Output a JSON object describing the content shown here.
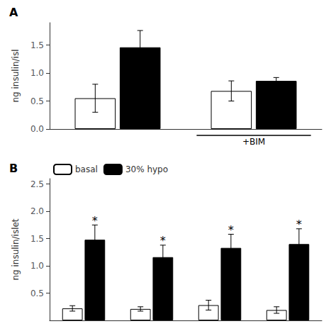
{
  "chart_data": [
    {
      "type": "bar",
      "title": "A",
      "ylabel": "ng insulin/isl",
      "categories": [
        null,
        null
      ],
      "series": [
        {
          "color": "#ffffff",
          "values": [
            0.55,
            0.68
          ],
          "errors": [
            0.25,
            0.18
          ]
        },
        {
          "color": "#000000",
          "values": [
            1.46,
            0.86
          ],
          "errors": [
            0.3,
            0.06
          ]
        }
      ],
      "ylim": [
        0,
        1.9
      ],
      "yticks": [
        {
          "value": 0,
          "label": "0.0"
        },
        0.5,
        {
          "value": 1,
          "label": "1.0"
        },
        1.5
      ],
      "annotations": [
        {
          "text": "+BIM",
          "category": 1
        }
      ],
      "grid": false,
      "tick_labels": "y"
    },
    {
      "type": "bar",
      "title": "B",
      "ylabel": "ng insulin/islet",
      "categories": [
        null,
        null,
        null,
        null
      ],
      "series": [
        {
          "name": "basal",
          "color": "#ffffff",
          "values": [
            0.22,
            0.21,
            0.28,
            0.19
          ],
          "errors": [
            0.05,
            0.04,
            0.09,
            0.06
          ]
        },
        {
          "name": "30% hypo",
          "color": "#000000",
          "values": [
            1.48,
            1.16,
            1.33,
            1.4
          ],
          "errors": [
            0.27,
            0.22,
            0.25,
            0.28
          ]
        }
      ],
      "ylim": [
        0,
        2.6
      ],
      "yticks": [
        0.5,
        {
          "value": 1,
          "label": "1.0"
        },
        1.5,
        {
          "value": 2,
          "label": "2.0"
        },
        2.5
      ],
      "annotations": [
        {
          "text": "*",
          "category": 0,
          "series": 1
        },
        {
          "text": "*",
          "category": 1,
          "series": 1
        },
        {
          "text": "*",
          "category": 2,
          "series": 1
        },
        {
          "text": "*",
          "category": 3,
          "series": 1
        }
      ],
      "legend": "upper left",
      "grid": false,
      "tick_labels": "y"
    }
  ]
}
